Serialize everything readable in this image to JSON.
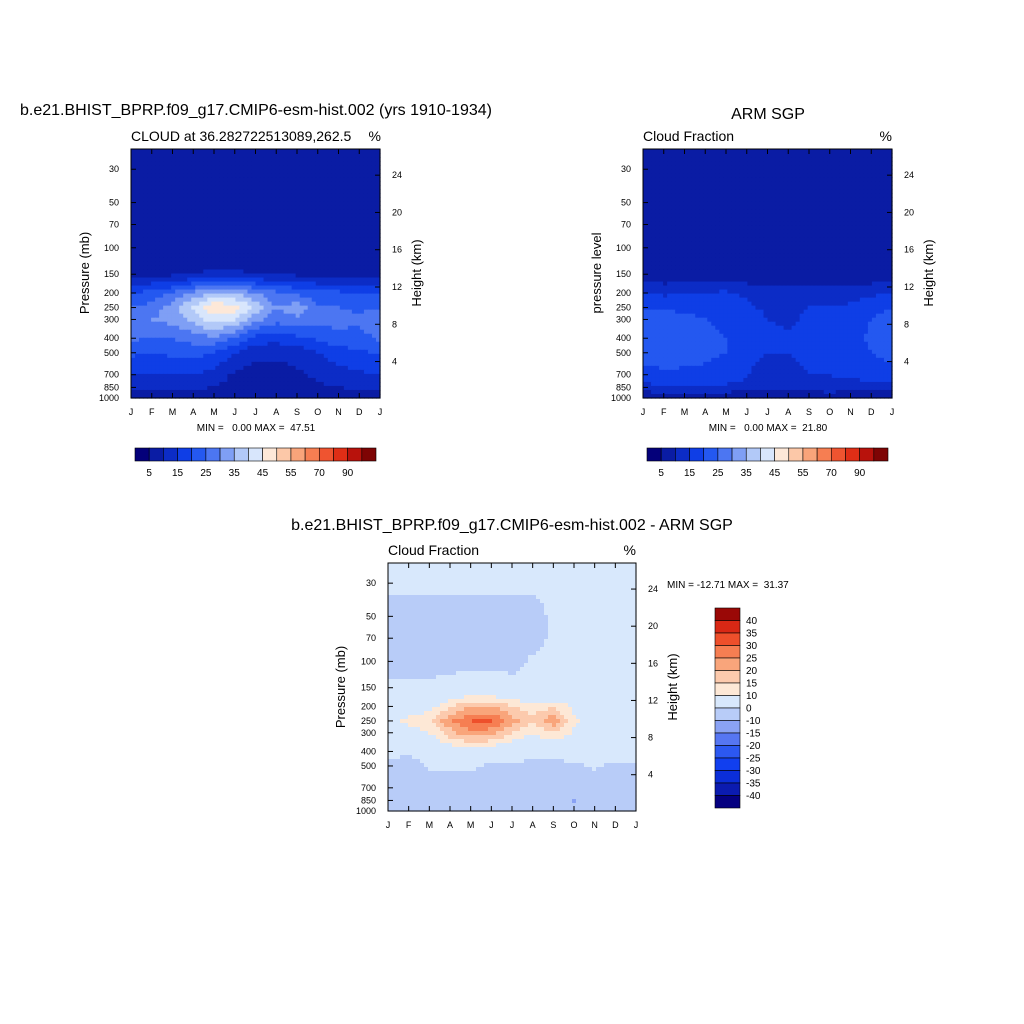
{
  "colors": {
    "cloud_levels": [
      0,
      5,
      10,
      15,
      20,
      25,
      30,
      35,
      40,
      45,
      50,
      55,
      60,
      70,
      80,
      90
    ],
    "cloud_colors": [
      "#04007a",
      "#0a1ca4",
      "#0c2cc6",
      "#0f3ee6",
      "#2458f0",
      "#4c76f2",
      "#7f9ff5",
      "#b2c9f8",
      "#d8e6fc",
      "#fde8d8",
      "#fcc8a8",
      "#f9a47a",
      "#f67e52",
      "#ef5430",
      "#df2e16",
      "#b8120c",
      "#7e0404"
    ],
    "diff_levels": [
      -40,
      -35,
      -30,
      -25,
      -20,
      -15,
      -10,
      0,
      10,
      15,
      20,
      25,
      30,
      35,
      40
    ],
    "diff_colors": [
      "#050080",
      "#0b1bb0",
      "#0b2ed8",
      "#113fef",
      "#2c58f1",
      "#5676f2",
      "#8aa2f4",
      "#b8ccf8",
      "#d8e8fc",
      "#fde8d6",
      "#fccaad",
      "#f9a57b",
      "#f67e52",
      "#ee4f2b",
      "#d92815",
      "#9a0806"
    ]
  },
  "panels": [
    {
      "id": "model",
      "title": "b.e21.BHIST_BPRP.f09_g17.CMIP6-esm-hist.002 (yrs 1910-1934)",
      "left_label": "CLOUD at 36.282722513089,262.5",
      "right_label": "%",
      "ylabel": "Pressure (mb)",
      "y2label": "Height (km)",
      "stats": "MIN =   0.00 MAX =  47.51",
      "colorbar_labels": [
        "5",
        "15",
        "25",
        "35",
        "45",
        "55",
        "70",
        "90"
      ]
    },
    {
      "id": "obs",
      "title": "ARM SGP",
      "left_label": "Cloud Fraction",
      "right_label": "%",
      "ylabel": "pressure level",
      "y2label": "Height (km)",
      "stats": "MIN =   0.00 MAX =  21.80",
      "colorbar_labels": [
        "5",
        "15",
        "25",
        "35",
        "45",
        "55",
        "70",
        "90"
      ]
    },
    {
      "id": "diff",
      "title": "b.e21.BHIST_BPRP.f09_g17.CMIP6-esm-hist.002 - ARM SGP",
      "left_label": "Cloud Fraction",
      "right_label": "%",
      "ylabel": "Pressure (mb)",
      "y2label": "Height (km)",
      "stats": "MIN = -12.71 MAX =  31.37",
      "colorbar_labels": [
        "40",
        "35",
        "30",
        "25",
        "20",
        "15",
        "10",
        "0",
        "-10",
        "-15",
        "-20",
        "-25",
        "-30",
        "-35",
        "-40"
      ]
    }
  ],
  "chart_data": [
    {
      "type": "heatmap",
      "title": "b.e21.BHIST_BPRP.f09_g17.CMIP6-esm-hist.002 (yrs 1910-1934)",
      "subtitle": "CLOUD at 36.282722513089,262.5",
      "units": "%",
      "xlabel": "",
      "ylabel": "Pressure (mb)",
      "y2label": "Height (km)",
      "x": [
        "J",
        "F",
        "M",
        "A",
        "M",
        "J",
        "J",
        "A",
        "S",
        "O",
        "N",
        "D",
        "J"
      ],
      "y": [
        30,
        50,
        70,
        100,
        150,
        200,
        250,
        300,
        400,
        500,
        700,
        850,
        1000
      ],
      "y2_ticks": [
        24,
        20,
        16,
        12,
        8,
        4
      ],
      "y_scale": "log",
      "min": 0.0,
      "max": 47.51,
      "values": [
        [
          0,
          0,
          0,
          0,
          0,
          0,
          0,
          0,
          0,
          0,
          0,
          0,
          0
        ],
        [
          0,
          0,
          0,
          0,
          0,
          0,
          0,
          0,
          0,
          0,
          0,
          0,
          0
        ],
        [
          0,
          0,
          0,
          0,
          0,
          0,
          0,
          0,
          0,
          0,
          0,
          0,
          0
        ],
        [
          0,
          0,
          0,
          0,
          0,
          0,
          0,
          0,
          0,
          0,
          0,
          0,
          0
        ],
        [
          3,
          3,
          4,
          5,
          6,
          6,
          5,
          4,
          4,
          3,
          3,
          3,
          3
        ],
        [
          14,
          17,
          20,
          26,
          31,
          30,
          25,
          21,
          19,
          17,
          16,
          15,
          14
        ],
        [
          20,
          22,
          28,
          36,
          44,
          43,
          33,
          25,
          28,
          21,
          20,
          19,
          20
        ],
        [
          24,
          25,
          27,
          32,
          38,
          35,
          27,
          22,
          24,
          22,
          22,
          21,
          24
        ],
        [
          21,
          20,
          20,
          22,
          24,
          20,
          13,
          12,
          14,
          16,
          18,
          18,
          21
        ],
        [
          16,
          15,
          16,
          17,
          15,
          10,
          6,
          6,
          7,
          10,
          13,
          14,
          16
        ],
        [
          10,
          10,
          10,
          10,
          8,
          4,
          3,
          3,
          4,
          6,
          8,
          9,
          10
        ],
        [
          6,
          6,
          6,
          6,
          5,
          3,
          2,
          3,
          3,
          4,
          5,
          6,
          6
        ],
        [
          0,
          0,
          0,
          0,
          0,
          0,
          0,
          0,
          0,
          0,
          0,
          0,
          0
        ]
      ]
    },
    {
      "type": "heatmap",
      "title": "ARM SGP",
      "subtitle": "Cloud Fraction",
      "units": "%",
      "xlabel": "",
      "ylabel": "pressure level",
      "y2label": "Height (km)",
      "x": [
        "J",
        "F",
        "M",
        "A",
        "M",
        "J",
        "J",
        "A",
        "S",
        "O",
        "N",
        "D",
        "J"
      ],
      "y": [
        30,
        50,
        70,
        100,
        150,
        200,
        250,
        300,
        400,
        500,
        700,
        850,
        1000
      ],
      "y2_ticks": [
        24,
        20,
        16,
        12,
        8,
        4
      ],
      "y_scale": "log",
      "min": 0.0,
      "max": 21.8,
      "values": [
        [
          0,
          0,
          0,
          0,
          0,
          0,
          0,
          0,
          0,
          0,
          0,
          0,
          0
        ],
        [
          0,
          0,
          0,
          0,
          0,
          0,
          0,
          0,
          0,
          0,
          0,
          0,
          0
        ],
        [
          0,
          0,
          0,
          0,
          0,
          0,
          0,
          0,
          0,
          0,
          0,
          0,
          0
        ],
        [
          0,
          0,
          0,
          0,
          0,
          0,
          0,
          0,
          0,
          0,
          0,
          0,
          0
        ],
        [
          1,
          1,
          1,
          1,
          1,
          1,
          1,
          1,
          1,
          1,
          1,
          1,
          1
        ],
        [
          10,
          9,
          10,
          10,
          11,
          9,
          7,
          7,
          8,
          7,
          8,
          9,
          10
        ],
        [
          15,
          14,
          14,
          14,
          13,
          11,
          9,
          9,
          10,
          10,
          11,
          13,
          15
        ],
        [
          17,
          18,
          16,
          15,
          14,
          13,
          10,
          9,
          11,
          11,
          12,
          15,
          17
        ],
        [
          19,
          20,
          17,
          16,
          15,
          14,
          11,
          11,
          12,
          12,
          13,
          16,
          19
        ],
        [
          17,
          18,
          17,
          16,
          15,
          13,
          10,
          10,
          11,
          12,
          13,
          15,
          17
        ],
        [
          13,
          14,
          14,
          14,
          13,
          11,
          5,
          9,
          10,
          10,
          11,
          12,
          13
        ],
        [
          8,
          10,
          9,
          9,
          9,
          8,
          6,
          6,
          8,
          9,
          8,
          8,
          8
        ],
        [
          0,
          0,
          0,
          0,
          0,
          0,
          0,
          0,
          0,
          0,
          0,
          0,
          0
        ]
      ]
    },
    {
      "type": "heatmap",
      "title": "b.e21.BHIST_BPRP.f09_g17.CMIP6-esm-hist.002 - ARM SGP",
      "subtitle": "Cloud Fraction",
      "units": "%",
      "xlabel": "",
      "ylabel": "Pressure (mb)",
      "y2label": "Height (km)",
      "x": [
        "J",
        "F",
        "M",
        "A",
        "M",
        "J",
        "J",
        "A",
        "S",
        "O",
        "N",
        "D",
        "J"
      ],
      "y": [
        30,
        50,
        70,
        100,
        150,
        200,
        250,
        300,
        400,
        500,
        700,
        850,
        1000
      ],
      "y2_ticks": [
        24,
        20,
        16,
        12,
        8,
        4
      ],
      "y_scale": "log",
      "min": -12.71,
      "max": 31.37,
      "values": [
        [
          0.5,
          0.5,
          0.5,
          0.5,
          0.5,
          0.5,
          0.5,
          0.5,
          0.5,
          0.5,
          0.5,
          0.5,
          0.5
        ],
        [
          -1,
          -1,
          -1,
          -1,
          -1,
          -1,
          -1,
          -1,
          0.5,
          0.5,
          0.5,
          0.5,
          0.5
        ],
        [
          -1,
          -1,
          -1,
          -1,
          -1,
          -1,
          -1,
          -1,
          0.5,
          0.5,
          0.5,
          0.5,
          0.5
        ],
        [
          -1,
          -1,
          -1,
          -1,
          -1,
          -1,
          -1,
          0.5,
          0.5,
          0.5,
          0.5,
          0.5,
          0.5
        ],
        [
          0.5,
          0.5,
          0.5,
          1,
          2,
          2,
          1,
          0.5,
          0.5,
          0.5,
          0.5,
          0.5,
          0.5
        ],
        [
          3,
          5,
          8,
          14,
          20,
          20,
          15,
          12,
          14,
          9,
          5,
          4,
          3
        ],
        [
          8,
          12,
          14,
          24,
          30,
          31,
          22,
          16,
          24,
          11,
          8,
          7,
          8
        ],
        [
          6,
          7,
          10,
          18,
          24,
          22,
          15,
          11,
          15,
          9,
          7,
          5,
          6
        ],
        [
          2,
          0.5,
          2,
          5,
          7,
          5,
          3,
          1,
          2,
          4,
          4,
          2,
          2
        ],
        [
          -1,
          -2,
          0.5,
          1,
          1,
          -1,
          -1,
          -1,
          -2,
          -1,
          0.5,
          -1,
          -1
        ],
        [
          -3,
          -4,
          -3,
          -3,
          -3,
          -3,
          -3,
          -3,
          -3,
          -4,
          -2,
          -3,
          -3
        ],
        [
          -2,
          -3,
          -2,
          -2,
          -2,
          -2,
          -2,
          -2,
          -2,
          -12,
          -2,
          -2,
          -2
        ],
        [
          0,
          0,
          0,
          0,
          0,
          0,
          0,
          0,
          0,
          0,
          0,
          0,
          0
        ]
      ]
    }
  ]
}
